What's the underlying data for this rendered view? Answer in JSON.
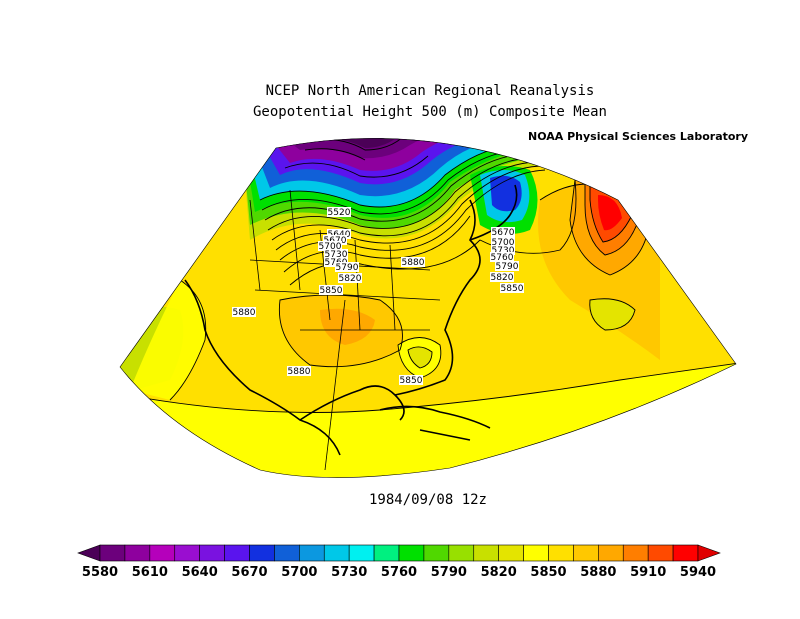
{
  "title_line1": "NCEP North American Regional Reanalysis",
  "title_line2": "Geopotential Height 500 (m) Composite Mean",
  "credit": "NOAA Physical Sciences Laboratory",
  "date": "1984/09/08 12z",
  "contour_labels": [
    "5520",
    "5640",
    "5670",
    "5700",
    "5730",
    "5760",
    "5790",
    "5820",
    "5850",
    "5880",
    "5670",
    "5700",
    "5730",
    "5760",
    "5790",
    "5820",
    "5850",
    "5880",
    "5880",
    "5850"
  ],
  "colorbar": {
    "ticks": [
      "5580",
      "5610",
      "5640",
      "5670",
      "5700",
      "5730",
      "5760",
      "5790",
      "5820",
      "5850",
      "5880",
      "5910",
      "5940"
    ],
    "colors": [
      "#4b0057",
      "#6c007c",
      "#8e009e",
      "#b500bb",
      "#9a0ed0",
      "#7a12e0",
      "#5a14ee",
      "#1230e0",
      "#1060d8",
      "#0c98e0",
      "#00c8e8",
      "#00f0f0",
      "#00f080",
      "#00e000",
      "#50d800",
      "#98e000",
      "#c8e000",
      "#e4e400",
      "#ffff00",
      "#ffe000",
      "#ffc800",
      "#ffa800",
      "#ff7e00",
      "#ff4a00",
      "#ff0000",
      "#e00000"
    ],
    "colors_legend": "purple to red spectrum"
  }
}
